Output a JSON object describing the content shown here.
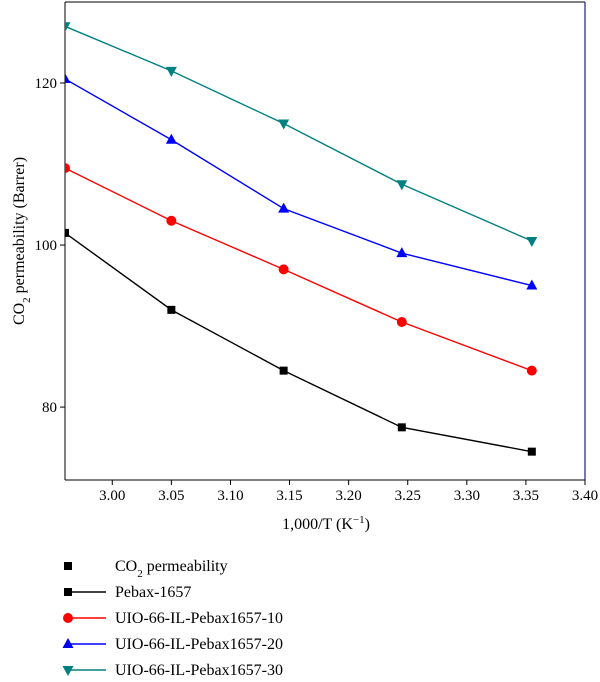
{
  "chart_data": {
    "type": "line",
    "xlabel": "1,000/T (K",
    "xlabel_sup": "−1",
    "xlabel_end": ")",
    "ylabel_pre": "CO",
    "ylabel_sub": "2",
    "ylabel_post": " permeability (Barrer)",
    "xlim": [
      2.96,
      3.4
    ],
    "ylim": [
      71,
      130
    ],
    "x_ticks": [
      3.0,
      3.05,
      3.1,
      3.15,
      3.2,
      3.25,
      3.3,
      3.35,
      3.4
    ],
    "x_tick_labels": [
      "3.00",
      "3.05",
      "3.10",
      "3.15",
      "3.20",
      "3.25",
      "3.30",
      "3.35",
      "3.40"
    ],
    "y_ticks": [
      80,
      100,
      120
    ],
    "y_tick_labels": [
      "80",
      "100",
      "120"
    ],
    "x": [
      2.96,
      3.05,
      3.145,
      3.245,
      3.355
    ],
    "legend_title": {
      "pre": "CO",
      "sub": "2",
      "post": " permeability"
    },
    "legend_position": "bottom",
    "series": [
      {
        "name": "Pebax-1657",
        "color": "#000000",
        "marker": "square",
        "values": [
          101.5,
          92.0,
          84.5,
          77.5,
          74.5
        ]
      },
      {
        "name": "UIO-66-IL-Pebax1657-10",
        "color": "#ff0000",
        "marker": "circle",
        "values": [
          109.5,
          103.0,
          97.0,
          90.5,
          84.5
        ]
      },
      {
        "name": "UIO-66-IL-Pebax1657-20",
        "color": "#0000ff",
        "marker": "triangle-up",
        "values": [
          120.5,
          113.0,
          104.5,
          99.0,
          95.0
        ]
      },
      {
        "name": "UIO-66-IL-Pebax1657-30",
        "color": "#008080",
        "marker": "triangle-down",
        "values": [
          127.0,
          121.5,
          115.0,
          107.5,
          100.5
        ]
      }
    ],
    "frame_colors": {
      "left": "#000000",
      "bottom": "#000000",
      "top": "#000000",
      "right": "#1a237e"
    }
  }
}
